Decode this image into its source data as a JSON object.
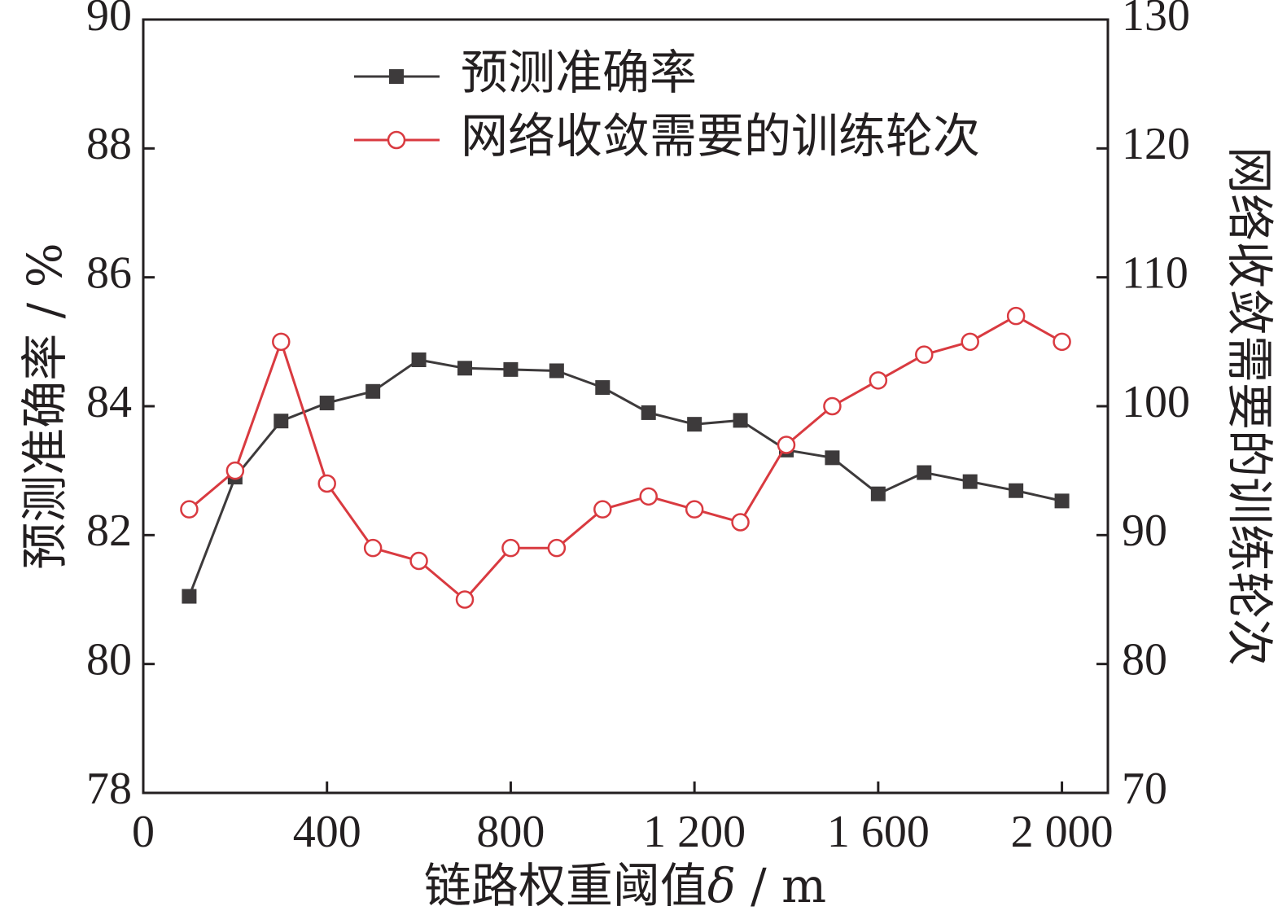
{
  "chart_data": {
    "type": "line",
    "xlabel_prefix": "链路权重阈值",
    "xlabel_symbol": "δ",
    "xlabel_unit": " / m",
    "ylabel_left": "预测准确率 / %",
    "ylabel_right": "网络收敛需要的训练轮次",
    "xlim": [
      0,
      2100
    ],
    "ylim_left": [
      78,
      90
    ],
    "ylim_right": [
      70,
      130
    ],
    "x_ticks": [
      0,
      400,
      800,
      1200,
      1600,
      2000
    ],
    "x_tick_labels": [
      "0",
      "400",
      "800",
      "1 200",
      "1 600",
      "2 000"
    ],
    "y_left_ticks": [
      78,
      80,
      82,
      84,
      86,
      88,
      90
    ],
    "y_left_tick_labels": [
      "78",
      "80",
      "82",
      "84",
      "86",
      "88",
      "90"
    ],
    "y_right_ticks": [
      70,
      80,
      90,
      100,
      110,
      120,
      130
    ],
    "y_right_tick_labels": [
      "70",
      "80",
      "90",
      "100",
      "110",
      "120",
      "130"
    ],
    "legend_position": "top-center",
    "x": [
      100,
      200,
      300,
      400,
      500,
      600,
      700,
      800,
      900,
      1000,
      1100,
      1200,
      1300,
      1400,
      1500,
      1600,
      1700,
      1800,
      1900,
      2000
    ],
    "series": [
      {
        "name": "预测准确率",
        "axis": "left",
        "marker": "filled-square",
        "color": "#3d3a3b",
        "values": [
          81.05,
          82.9,
          83.77,
          84.05,
          84.23,
          84.72,
          84.59,
          84.57,
          84.55,
          84.29,
          83.9,
          83.72,
          83.78,
          83.32,
          83.2,
          82.64,
          82.97,
          82.83,
          82.69,
          82.53
        ]
      },
      {
        "name": "网络收敛需要的训练轮次",
        "axis": "right",
        "marker": "open-circle",
        "color": "#d93a40",
        "values": [
          92,
          95,
          105,
          94,
          89,
          88,
          85,
          89,
          89,
          92,
          93,
          92,
          91,
          97,
          100,
          102,
          104,
          105,
          107,
          105
        ]
      }
    ]
  }
}
